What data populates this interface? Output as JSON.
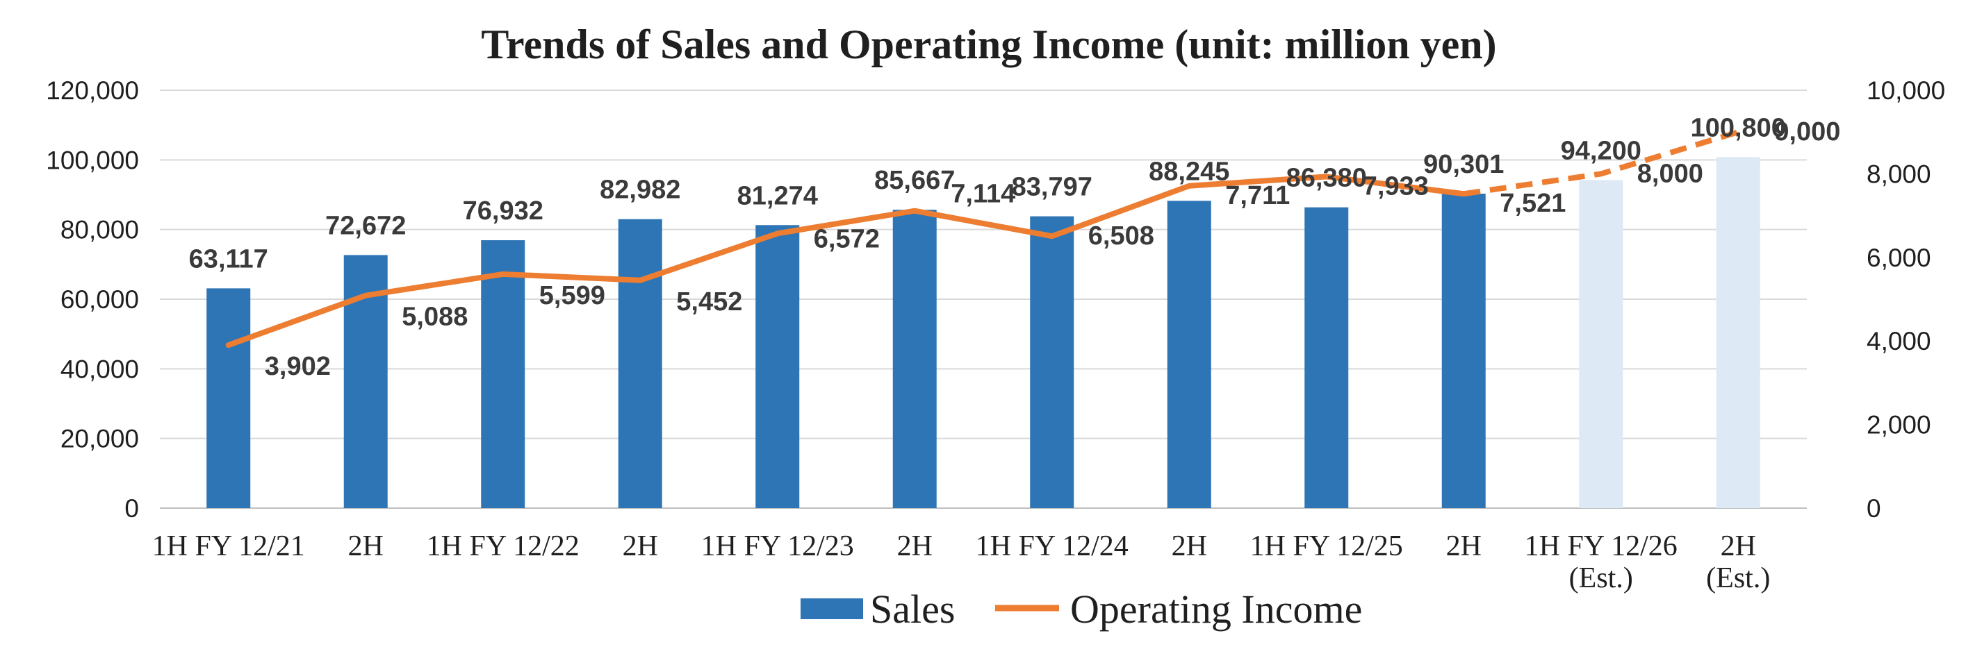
{
  "chart_data": {
    "type": "bar",
    "title": "Trends of Sales and Operating Income (unit: million yen)",
    "categories": [
      [
        "1H FY 12/21"
      ],
      [
        "2H"
      ],
      [
        "1H FY 12/22"
      ],
      [
        "2H"
      ],
      [
        "1H FY 12/23"
      ],
      [
        "2H"
      ],
      [
        "1H FY 12/24"
      ],
      [
        "2H"
      ],
      [
        "1H FY 12/25"
      ],
      [
        "2H"
      ],
      [
        "1H FY 12/26",
        "(Est.)"
      ],
      [
        "2H",
        "(Est.)"
      ]
    ],
    "estimate_from_index": 10,
    "y_left": {
      "min": 0,
      "max": 120000,
      "ticks": [
        "0",
        "20,000",
        "40,000",
        "60,000",
        "80,000",
        "100,000",
        "120,000"
      ]
    },
    "y_right": {
      "min": 0,
      "max": 10000,
      "ticks": [
        "0",
        "2,000",
        "4,000",
        "6,000",
        "8,000",
        "10,000"
      ]
    },
    "grid": true,
    "legend_position": "bottom",
    "series": [
      {
        "name": "Sales",
        "kind": "bar",
        "axis": "left",
        "color": "#2e75b6",
        "estimate_color": "#dde9f5",
        "values": [
          63117,
          72672,
          76932,
          82982,
          81274,
          85667,
          83797,
          88245,
          86380,
          90301,
          94200,
          100800
        ],
        "labels": [
          "63,117",
          "72,672",
          "76,932",
          "82,982",
          "81,274",
          "85,667",
          "83,797",
          "88,245",
          "86,380",
          "90,301",
          "94,200",
          "100,800"
        ]
      },
      {
        "name": "Operating Income",
        "kind": "line",
        "axis": "right",
        "color": "#ed7d31",
        "values": [
          3902,
          5088,
          5599,
          5452,
          6572,
          7114,
          6508,
          7711,
          7933,
          7521,
          8000,
          9000
        ],
        "labels": [
          "3,902",
          "5,088",
          "5,599",
          "5,452",
          "6,572",
          "7,114",
          "6,508",
          "7,711",
          "7,933",
          "7,521",
          "8,000",
          "9,000"
        ]
      }
    ]
  }
}
